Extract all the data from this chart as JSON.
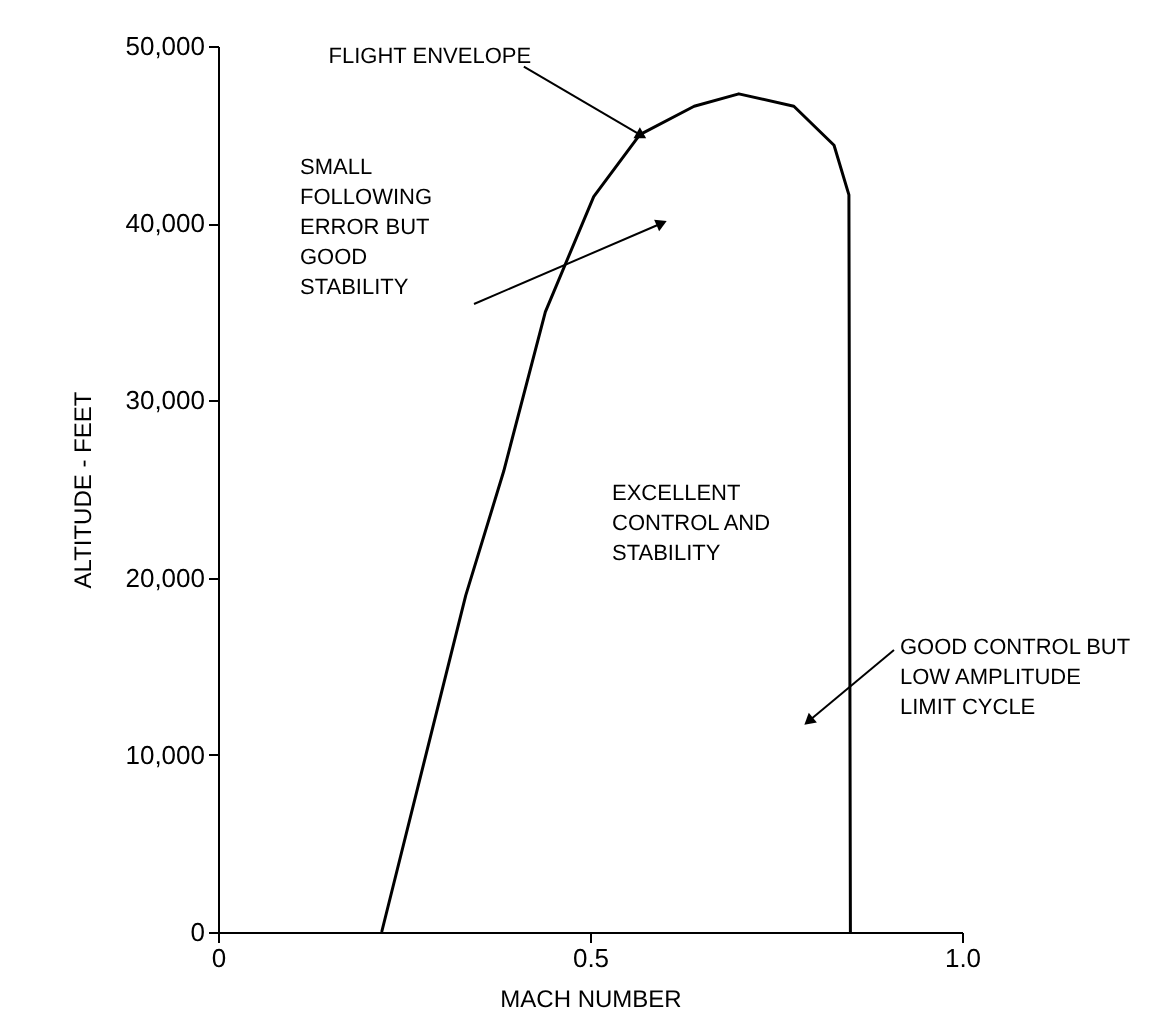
{
  "chart_data": {
    "type": "line",
    "xlabel": "MACH NUMBER",
    "ylabel": "ALTITUDE - FEET",
    "x": [
      0.22,
      0.333,
      0.384,
      0.44,
      0.505,
      0.567,
      0.64,
      0.7,
      0.774,
      0.828,
      0.848,
      0.85
    ],
    "series": [
      {
        "color": "#000000",
        "values": [
          0,
          19000,
          26000,
          35000,
          41500,
          45000,
          46600,
          47300,
          46600,
          44400,
          41600,
          0
        ]
      }
    ],
    "xlim": [
      0,
      1.0
    ],
    "xticks": [
      0,
      0.5,
      {
        "value": 1.0,
        "label": "1.0"
      }
    ],
    "ylim": [
      0,
      50000
    ],
    "yticks": [
      0,
      {
        "value": 10000,
        "label": "10,000"
      },
      {
        "value": 20000,
        "label": "20,000"
      },
      {
        "value": 30000,
        "label": "30,000"
      },
      {
        "value": 40000,
        "label": "40,000"
      },
      {
        "value": 50000,
        "label": "50,000"
      }
    ],
    "grid": false,
    "legend": false,
    "marker": "none",
    "line_style": "solid",
    "annotations": [
      {
        "text": "FLIGHT ENVELOPE",
        "x": 0.567,
        "y": 45000
      },
      "SMALL FOLLOWING ERROR BUT GOOD STABILITY",
      "EXCELLENT CONTROL AND STABILITY",
      "GOOD CONTROL BUT LOW AMPLITUDE LIMIT CYCLE"
    ]
  }
}
